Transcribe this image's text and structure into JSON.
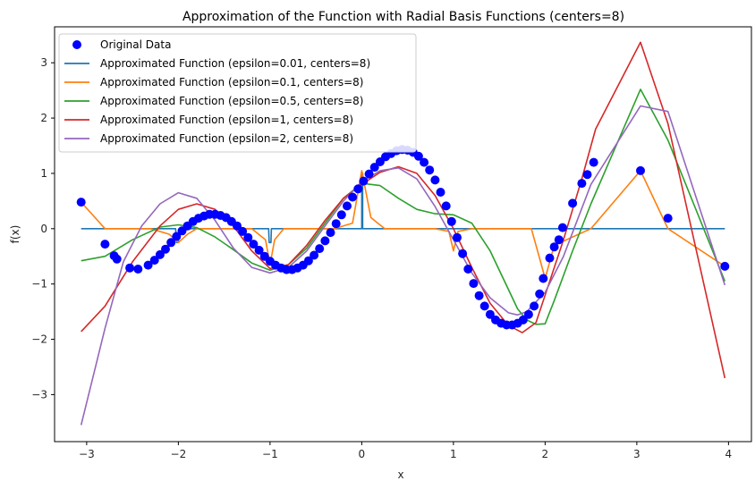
{
  "chart_data": {
    "type": "line",
    "title": "Approximation of the Function with Radial Basis Functions (centers=8)",
    "xlabel": "x",
    "ylabel": "f(x)",
    "xlim": [
      -3.35,
      4.25
    ],
    "ylim": [
      -3.85,
      3.65
    ],
    "xticks": [
      -3,
      -2,
      -1,
      0,
      1,
      2,
      3,
      4
    ],
    "yticks": [
      -3,
      -2,
      -1,
      0,
      1,
      2,
      3
    ],
    "grid": false,
    "legend_position": "top-left",
    "scatter": {
      "name": "Original Data",
      "color": "#0000ff",
      "points": [
        [
          -3.06,
          0.48
        ],
        [
          -2.8,
          -0.28
        ],
        [
          -2.7,
          -0.49
        ],
        [
          -2.67,
          -0.55
        ],
        [
          -2.53,
          -0.71
        ],
        [
          -2.44,
          -0.73
        ],
        [
          -2.33,
          -0.66
        ],
        [
          -2.26,
          -0.57
        ],
        [
          -2.2,
          -0.47
        ],
        [
          -2.14,
          -0.37
        ],
        [
          -2.08,
          -0.25
        ],
        [
          -2.02,
          -0.14
        ],
        [
          -1.96,
          -0.04
        ],
        [
          -1.9,
          0.05
        ],
        [
          -1.84,
          0.13
        ],
        [
          -1.78,
          0.19
        ],
        [
          -1.72,
          0.23
        ],
        [
          -1.66,
          0.26
        ],
        [
          -1.6,
          0.26
        ],
        [
          -1.54,
          0.24
        ],
        [
          -1.48,
          0.2
        ],
        [
          -1.42,
          0.13
        ],
        [
          -1.36,
          0.05
        ],
        [
          -1.3,
          -0.05
        ],
        [
          -1.24,
          -0.16
        ],
        [
          -1.18,
          -0.28
        ],
        [
          -1.12,
          -0.39
        ],
        [
          -1.06,
          -0.5
        ],
        [
          -1.0,
          -0.59
        ],
        [
          -0.94,
          -0.66
        ],
        [
          -0.88,
          -0.71
        ],
        [
          -0.82,
          -0.74
        ],
        [
          -0.76,
          -0.74
        ],
        [
          -0.7,
          -0.71
        ],
        [
          -0.64,
          -0.66
        ],
        [
          -0.58,
          -0.58
        ],
        [
          -0.52,
          -0.48
        ],
        [
          -0.46,
          -0.36
        ],
        [
          -0.4,
          -0.22
        ],
        [
          -0.34,
          -0.07
        ],
        [
          -0.28,
          0.09
        ],
        [
          -0.22,
          0.25
        ],
        [
          -0.16,
          0.41
        ],
        [
          -0.1,
          0.57
        ],
        [
          -0.04,
          0.72
        ],
        [
          0.02,
          0.86
        ],
        [
          0.08,
          0.99
        ],
        [
          0.14,
          1.11
        ],
        [
          0.2,
          1.21
        ],
        [
          0.26,
          1.3
        ],
        [
          0.32,
          1.36
        ],
        [
          0.38,
          1.41
        ],
        [
          0.44,
          1.43
        ],
        [
          0.5,
          1.42
        ],
        [
          0.56,
          1.38
        ],
        [
          0.62,
          1.31
        ],
        [
          0.68,
          1.2
        ],
        [
          0.74,
          1.06
        ],
        [
          0.8,
          0.88
        ],
        [
          0.86,
          0.66
        ],
        [
          0.92,
          0.41
        ],
        [
          0.98,
          0.13
        ],
        [
          1.04,
          -0.16
        ],
        [
          1.1,
          -0.45
        ],
        [
          1.16,
          -0.73
        ],
        [
          1.22,
          -0.99
        ],
        [
          1.28,
          -1.21
        ],
        [
          1.34,
          -1.4
        ],
        [
          1.4,
          -1.55
        ],
        [
          1.46,
          -1.65
        ],
        [
          1.52,
          -1.71
        ],
        [
          1.58,
          -1.74
        ],
        [
          1.64,
          -1.74
        ],
        [
          1.7,
          -1.71
        ],
        [
          1.76,
          -1.65
        ],
        [
          1.82,
          -1.55
        ],
        [
          1.88,
          -1.4
        ],
        [
          1.94,
          -1.18
        ],
        [
          1.98,
          -0.9
        ],
        [
          2.05,
          -0.53
        ],
        [
          2.1,
          -0.33
        ],
        [
          2.15,
          -0.2
        ],
        [
          2.19,
          0.02
        ],
        [
          2.3,
          0.46
        ],
        [
          2.4,
          0.82
        ],
        [
          2.46,
          0.98
        ],
        [
          2.53,
          1.2
        ],
        [
          3.04,
          1.05
        ],
        [
          3.34,
          0.19
        ],
        [
          3.96,
          -0.68
        ]
      ]
    },
    "series": [
      {
        "name": "Approximated Function (epsilon=0.01, centers=8)",
        "color": "#1f77b4",
        "x": [
          -3.06,
          -2.03,
          -2.02,
          -2.0,
          -1.99,
          -1.015,
          -1.01,
          -1.0,
          -0.99,
          -0.985,
          0.0,
          0.0,
          0.01,
          0.01,
          3.96
        ],
        "y": [
          0,
          0,
          -0.25,
          -0.25,
          0,
          0,
          -0.25,
          -0.25,
          -0.25,
          0,
          0,
          1.0,
          1.0,
          0,
          0
        ]
      },
      {
        "name": "Approximated Function (epsilon=0.1, centers=8)",
        "color": "#ff7f0e",
        "x": [
          -3.06,
          -2.8,
          -2.7,
          -2.3,
          -2.1,
          -2.0,
          -1.9,
          -1.8,
          -1.2,
          -1.05,
          -1.0,
          -0.95,
          -0.85,
          -0.6,
          -0.3,
          -0.1,
          0.0,
          0.1,
          0.25,
          0.8,
          0.95,
          1.0,
          1.05,
          1.2,
          1.85,
          1.95,
          2.0,
          2.1,
          2.5,
          3.04,
          3.34,
          3.96
        ],
        "y": [
          0.48,
          0.0,
          0.0,
          0.0,
          -0.1,
          -0.25,
          -0.1,
          0.0,
          0.0,
          -0.2,
          -0.65,
          -0.2,
          0.0,
          0.0,
          0.0,
          0.1,
          1.05,
          0.2,
          0.0,
          0.0,
          -0.05,
          -0.4,
          -0.05,
          0.0,
          0.0,
          -0.6,
          -0.9,
          -0.3,
          0.0,
          1.05,
          0.0,
          -0.68
        ]
      },
      {
        "name": "Approximated Function (epsilon=0.5, centers=8)",
        "color": "#2ca02c",
        "x": [
          -3.06,
          -2.8,
          -2.5,
          -2.2,
          -2.0,
          -1.8,
          -1.6,
          -1.4,
          -1.2,
          -1.0,
          -0.8,
          -0.6,
          -0.4,
          -0.2,
          0.0,
          0.2,
          0.4,
          0.6,
          0.8,
          1.0,
          1.2,
          1.4,
          1.6,
          1.7,
          1.8,
          1.9,
          2.0,
          2.1,
          2.3,
          2.5,
          2.8,
          3.04,
          3.34,
          3.96
        ],
        "y": [
          -0.58,
          -0.5,
          -0.2,
          0.03,
          0.07,
          0.02,
          -0.15,
          -0.38,
          -0.62,
          -0.75,
          -0.65,
          -0.35,
          0.1,
          0.55,
          0.82,
          0.78,
          0.55,
          0.35,
          0.27,
          0.25,
          0.1,
          -0.4,
          -1.1,
          -1.45,
          -1.65,
          -1.73,
          -1.72,
          -1.3,
          -0.4,
          0.45,
          1.6,
          2.52,
          1.6,
          -0.95
        ]
      },
      {
        "name": "Approximated Function (epsilon=1, centers=8)",
        "color": "#d62728",
        "x": [
          -3.06,
          -2.8,
          -2.5,
          -2.2,
          -2.0,
          -1.8,
          -1.6,
          -1.4,
          -1.2,
          -1.0,
          -0.8,
          -0.6,
          -0.4,
          -0.2,
          0.0,
          0.2,
          0.4,
          0.6,
          0.8,
          1.0,
          1.2,
          1.4,
          1.6,
          1.75,
          1.9,
          2.0,
          2.2,
          2.4,
          2.55,
          3.04,
          3.34,
          3.96
        ],
        "y": [
          -1.86,
          -1.4,
          -0.6,
          0.05,
          0.35,
          0.45,
          0.35,
          0.05,
          -0.4,
          -0.72,
          -0.65,
          -0.3,
          0.15,
          0.55,
          0.8,
          1.02,
          1.12,
          1.0,
          0.6,
          0.0,
          -0.7,
          -1.35,
          -1.75,
          -1.88,
          -1.7,
          -1.2,
          -0.2,
          0.9,
          1.8,
          3.37,
          1.9,
          -2.7
        ]
      },
      {
        "name": "Approximated Function (epsilon=2, centers=8)",
        "color": "#9467bd",
        "x": [
          -3.06,
          -2.8,
          -2.6,
          -2.4,
          -2.2,
          -2.0,
          -1.8,
          -1.6,
          -1.4,
          -1.2,
          -1.0,
          -0.8,
          -0.6,
          -0.4,
          -0.2,
          0.0,
          0.2,
          0.4,
          0.6,
          0.8,
          1.0,
          1.2,
          1.4,
          1.6,
          1.7,
          1.8,
          2.0,
          2.2,
          2.5,
          3.04,
          3.34,
          3.96
        ],
        "y": [
          -3.55,
          -1.8,
          -0.6,
          0.05,
          0.45,
          0.65,
          0.55,
          0.15,
          -0.35,
          -0.7,
          -0.8,
          -0.7,
          -0.4,
          0.05,
          0.5,
          0.85,
          1.05,
          1.1,
          0.9,
          0.4,
          -0.2,
          -0.8,
          -1.25,
          -1.52,
          -1.56,
          -1.5,
          -1.15,
          -0.5,
          0.8,
          2.22,
          2.12,
          -1.02
        ]
      }
    ]
  }
}
